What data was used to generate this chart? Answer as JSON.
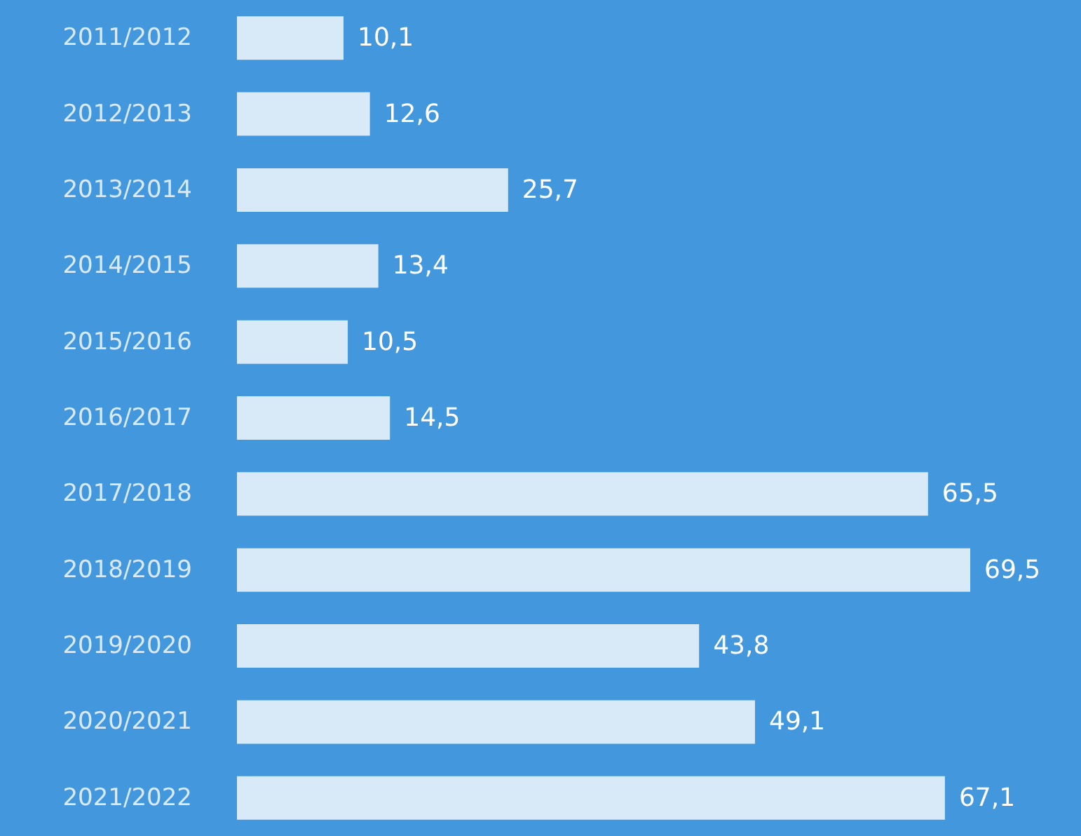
{
  "chart_data": {
    "type": "bar",
    "orientation": "horizontal",
    "categories": [
      "2011/2012",
      "2012/2013",
      "2013/2014",
      "2014/2015",
      "2015/2016",
      "2016/2017",
      "2017/2018",
      "2018/2019",
      "2019/2020",
      "2020/2021",
      "2021/2022"
    ],
    "values": [
      10.1,
      12.6,
      25.7,
      13.4,
      10.5,
      14.5,
      65.5,
      69.5,
      43.8,
      49.1,
      67.1
    ],
    "value_labels": [
      "10,1",
      "12,6",
      "25,7",
      "13,4",
      "10,5",
      "14,5",
      "65,5",
      "69,5",
      "43,8",
      "49,1",
      "67,1"
    ],
    "color": "#d8e9f8"
  }
}
